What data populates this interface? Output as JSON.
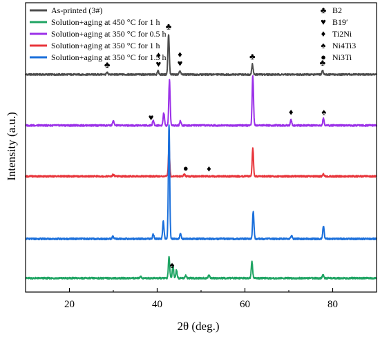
{
  "chart_data": {
    "type": "line",
    "xlabel": "2θ (deg.)",
    "ylabel": "Intensity (a.u.)",
    "xlim": [
      10,
      90
    ],
    "xticks": [
      20,
      40,
      60,
      80
    ],
    "grid": false,
    "legend_position": "top-left",
    "series": [
      {
        "name": "As-printed (3#)",
        "color": "#4d4d4d",
        "offset": 8.8,
        "base": 0.0,
        "peaks": [
          [
            28.6,
            0.08
          ],
          [
            40.2,
            0.15
          ],
          [
            42.6,
            1.75
          ],
          [
            45.2,
            0.15
          ],
          [
            61.7,
            0.45
          ],
          [
            77.7,
            0.18
          ]
        ]
      },
      {
        "name": "Solution+aging at 450 °C for 1 h",
        "color": "#1fa463",
        "offset": 0.0,
        "base": 0.0,
        "peaks": [
          [
            36.2,
            0.08
          ],
          [
            42.7,
            0.9
          ],
          [
            43.6,
            0.55
          ],
          [
            44.4,
            0.35
          ],
          [
            46.5,
            0.12
          ],
          [
            51.8,
            0.15
          ],
          [
            61.6,
            0.7
          ],
          [
            77.8,
            0.15
          ]
        ]
      },
      {
        "name": "Solution+aging at 350 °C for 0.5 h",
        "color": "#9b30e8",
        "offset": 6.6,
        "base": 0.0,
        "peaks": [
          [
            30.0,
            0.2
          ],
          [
            39.1,
            0.22
          ],
          [
            41.5,
            0.55
          ],
          [
            42.8,
            1.95
          ],
          [
            45.3,
            0.2
          ],
          [
            61.8,
            2.15
          ],
          [
            70.5,
            0.25
          ],
          [
            77.9,
            0.3
          ]
        ]
      },
      {
        "name": "Solution+aging at 350 °C for 1 h",
        "color": "#e8353b",
        "offset": 4.4,
        "base": 0.0,
        "peaks": [
          [
            30.0,
            0.08
          ],
          [
            42.7,
            1.2
          ],
          [
            46.2,
            0.1
          ],
          [
            61.8,
            1.2
          ],
          [
            77.9,
            0.1
          ]
        ]
      },
      {
        "name": "Solution+aging at 350 °C for 1.5 h",
        "color": "#1a6fdb",
        "offset": 1.7,
        "base": 0.0,
        "peaks": [
          [
            29.9,
            0.1
          ],
          [
            39.1,
            0.2
          ],
          [
            41.4,
            0.75
          ],
          [
            42.7,
            4.9
          ],
          [
            45.3,
            0.2
          ],
          [
            61.9,
            1.2
          ],
          [
            70.6,
            0.15
          ],
          [
            77.9,
            0.55
          ]
        ]
      }
    ],
    "symbol_legend": [
      {
        "symbol": "♣",
        "label": "B2"
      },
      {
        "symbol": "♥",
        "label": "B19′"
      },
      {
        "symbol": "♦",
        "label": "Ti2Ni"
      },
      {
        "symbol": "♠",
        "label": "Ni4Ti3"
      },
      {
        "symbol": "●",
        "label": "Ni3Ti"
      }
    ],
    "annotations": [
      {
        "symbol": "♣",
        "x": 28.6,
        "series": 0
      },
      {
        "symbol": "♦",
        "x": 40.3,
        "series": 0,
        "stack": 1
      },
      {
        "symbol": "♥",
        "x": 40.3,
        "series": 0
      },
      {
        "symbol": "♣",
        "x": 42.6,
        "series": 0
      },
      {
        "symbol": "♦",
        "x": 45.2,
        "series": 0,
        "stack": 1
      },
      {
        "symbol": "♥",
        "x": 45.2,
        "series": 0
      },
      {
        "symbol": "♣",
        "x": 61.7,
        "series": 0
      },
      {
        "symbol": "♣",
        "x": 77.7,
        "series": 0
      },
      {
        "symbol": "♥",
        "x": 38.6,
        "series": 2
      },
      {
        "symbol": "♦",
        "x": 70.5,
        "series": 2
      },
      {
        "symbol": "♠",
        "x": 78.0,
        "series": 2
      },
      {
        "symbol": "●",
        "x": 46.5,
        "series": 3
      },
      {
        "symbol": "♦",
        "x": 51.8,
        "series": 3
      },
      {
        "symbol": "♠",
        "x": 43.4,
        "series": 1
      }
    ]
  }
}
